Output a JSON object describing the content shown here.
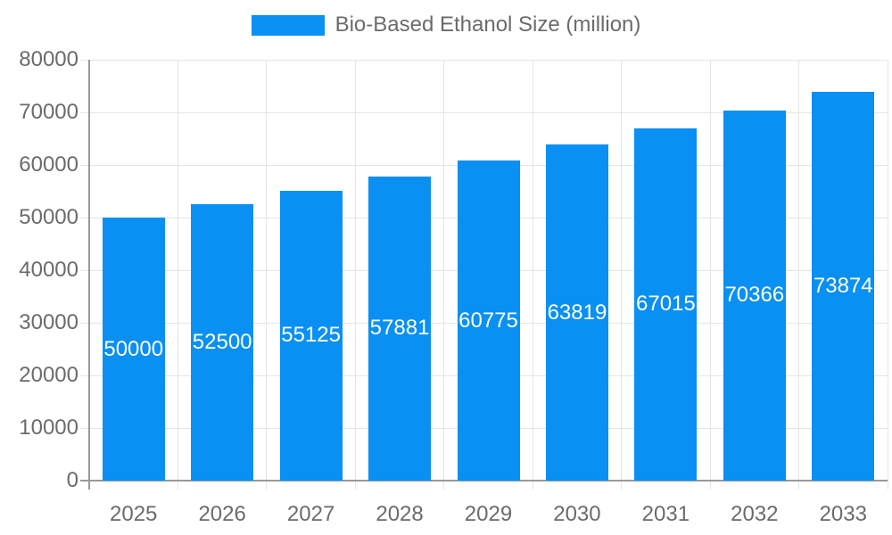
{
  "chart_data": {
    "type": "bar",
    "title": "",
    "legend": "Bio-Based Ethanol Size (million)",
    "legend_position": "top",
    "categories": [
      "2025",
      "2026",
      "2027",
      "2028",
      "2029",
      "2030",
      "2031",
      "2032",
      "2033"
    ],
    "values": [
      50000,
      52500,
      55125,
      57881,
      60775,
      63819,
      67015,
      70366,
      73874
    ],
    "value_labels": [
      "50000",
      "52500",
      "55125",
      "57881",
      "60775",
      "63819",
      "67015",
      "70366",
      "73874"
    ],
    "xlabel": "",
    "ylabel": "",
    "ylim": [
      0,
      80000
    ],
    "ytick_labels": [
      "0",
      "10000",
      "20000",
      "30000",
      "40000",
      "50000",
      "60000",
      "70000",
      "80000"
    ],
    "grid": true,
    "colors": {
      "bar": "#0990f2",
      "bar_value_label": "#ffffff",
      "grid": "#e5e5e5",
      "axis": "#999999",
      "tick_text": "#6b6b6b",
      "legend_text": "#6b6b6b"
    }
  }
}
